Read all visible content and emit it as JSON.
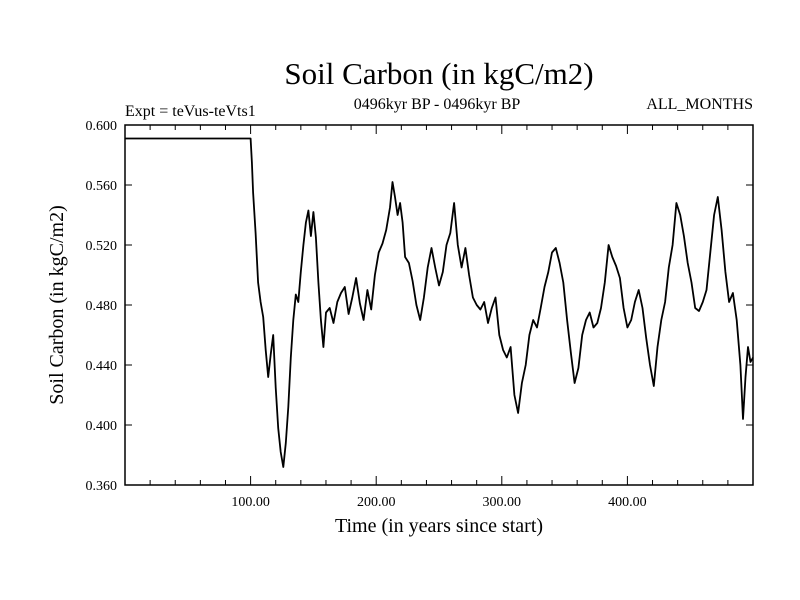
{
  "chart_data": {
    "type": "line",
    "title": "Soil Carbon (in kgC/m2)",
    "subtitle_left": "Expt = teVus-teVts1",
    "subtitle_center": "0496kyr BP - 0496kyr BP",
    "subtitle_right": "ALL_MONTHS",
    "xlabel": "Time (in years since start)",
    "ylabel": "Soil Carbon (in kgC/m2)",
    "xlim": [
      0,
      500
    ],
    "ylim": [
      0.36,
      0.6
    ],
    "xticks": [
      100,
      200,
      300,
      400
    ],
    "xtick_labels": [
      "100.00",
      "200.00",
      "300.00",
      "400.00"
    ],
    "yticks": [
      0.36,
      0.4,
      0.44,
      0.48,
      0.52,
      0.56,
      0.6
    ],
    "ytick_labels": [
      "0.360",
      "0.400",
      "0.440",
      "0.480",
      "0.520",
      "0.560",
      "0.600"
    ],
    "grid": false,
    "line_color": "#000000",
    "series": [
      {
        "x": [
          0,
          100,
          101,
          102,
          104,
          106,
          108,
          110,
          112,
          114,
          116,
          118,
          120,
          122,
          124,
          126,
          128,
          130,
          132,
          134,
          136,
          138,
          140,
          142,
          144,
          146,
          148,
          150,
          152,
          154,
          156,
          158,
          160,
          163,
          166,
          169,
          172,
          175,
          178,
          181,
          184,
          187,
          190,
          193,
          196,
          199,
          202,
          205,
          208,
          211,
          213,
          215,
          217,
          219,
          221,
          223,
          226,
          229,
          232,
          235,
          238,
          241,
          244,
          247,
          250,
          253,
          256,
          259,
          262,
          265,
          268,
          271,
          274,
          277,
          280,
          283,
          286,
          289,
          292,
          295,
          298,
          301,
          304,
          307,
          310,
          313,
          316,
          319,
          322,
          325,
          328,
          331,
          334,
          337,
          340,
          343,
          346,
          349,
          352,
          355,
          358,
          361,
          364,
          367,
          370,
          373,
          376,
          379,
          382,
          385,
          388,
          391,
          394,
          397,
          400,
          403,
          406,
          409,
          412,
          415,
          418,
          421,
          424,
          427,
          430,
          433,
          436,
          439,
          442,
          445,
          448,
          451,
          454,
          457,
          460,
          463,
          466,
          469,
          472,
          475,
          478,
          481,
          484,
          487,
          490,
          492,
          494,
          496,
          498,
          500
        ],
        "y": [
          0.591,
          0.591,
          0.575,
          0.555,
          0.528,
          0.495,
          0.482,
          0.472,
          0.45,
          0.432,
          0.447,
          0.46,
          0.425,
          0.398,
          0.382,
          0.372,
          0.388,
          0.412,
          0.445,
          0.47,
          0.487,
          0.482,
          0.502,
          0.52,
          0.535,
          0.543,
          0.526,
          0.542,
          0.525,
          0.495,
          0.47,
          0.452,
          0.475,
          0.478,
          0.468,
          0.482,
          0.488,
          0.492,
          0.474,
          0.485,
          0.498,
          0.481,
          0.47,
          0.49,
          0.477,
          0.5,
          0.515,
          0.521,
          0.53,
          0.545,
          0.562,
          0.552,
          0.54,
          0.548,
          0.535,
          0.512,
          0.508,
          0.496,
          0.48,
          0.47,
          0.485,
          0.505,
          0.518,
          0.505,
          0.493,
          0.502,
          0.52,
          0.528,
          0.548,
          0.52,
          0.505,
          0.518,
          0.5,
          0.485,
          0.48,
          0.477,
          0.482,
          0.468,
          0.478,
          0.485,
          0.46,
          0.45,
          0.445,
          0.452,
          0.42,
          0.408,
          0.428,
          0.44,
          0.46,
          0.47,
          0.465,
          0.478,
          0.492,
          0.502,
          0.515,
          0.518,
          0.508,
          0.495,
          0.47,
          0.448,
          0.428,
          0.438,
          0.46,
          0.47,
          0.475,
          0.465,
          0.468,
          0.478,
          0.495,
          0.52,
          0.512,
          0.506,
          0.498,
          0.478,
          0.465,
          0.47,
          0.482,
          0.49,
          0.478,
          0.458,
          0.44,
          0.426,
          0.452,
          0.47,
          0.482,
          0.505,
          0.52,
          0.548,
          0.54,
          0.526,
          0.508,
          0.495,
          0.478,
          0.476,
          0.482,
          0.49,
          0.515,
          0.54,
          0.552,
          0.53,
          0.502,
          0.482,
          0.488,
          0.47,
          0.44,
          0.404,
          0.432,
          0.452,
          0.442,
          0.445
        ]
      }
    ]
  }
}
